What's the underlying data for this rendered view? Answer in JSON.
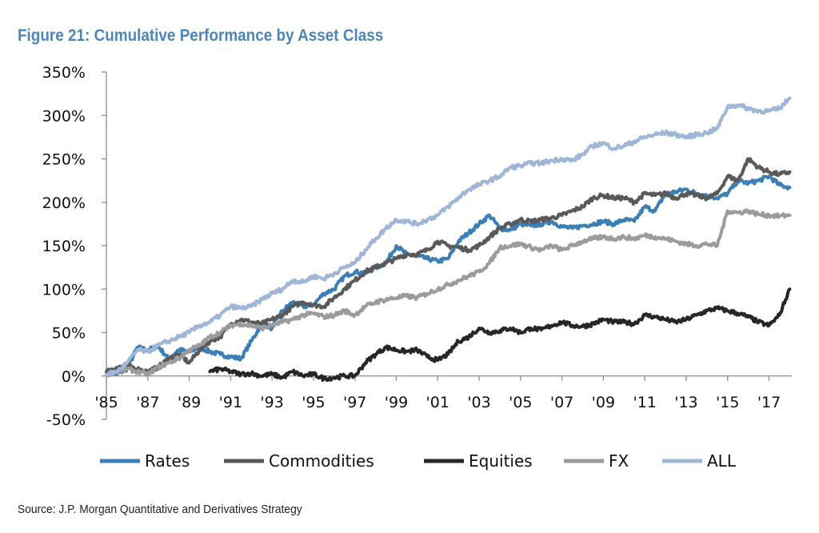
{
  "header": {
    "title": "Figure 21: Cumulative Performance by Asset Class"
  },
  "footer": {
    "source": "Source: J.P. Morgan Quantitative and Derivatives Strategy"
  },
  "chart_data": {
    "type": "line",
    "title": "Figure 21: Cumulative Performance by Asset Class",
    "xlabel": "",
    "ylabel": "",
    "xlim": [
      1985,
      2018.1
    ],
    "ylim": [
      -50,
      350
    ],
    "x_ticks": [
      1985,
      1987,
      1989,
      1991,
      1993,
      1995,
      1997,
      1999,
      2001,
      2003,
      2005,
      2007,
      2009,
      2011,
      2013,
      2015,
      2017
    ],
    "x_tick_labels": [
      "'85",
      "'87",
      "'89",
      "'91",
      "'93",
      "'95",
      "'97",
      "'99",
      "'01",
      "'03",
      "'05",
      "'07",
      "'09",
      "'11",
      "'13",
      "'15",
      "'17"
    ],
    "y_ticks": [
      -50,
      0,
      50,
      100,
      150,
      200,
      250,
      300,
      350
    ],
    "y_tick_labels": [
      "-50%",
      "0%",
      "50%",
      "100%",
      "150%",
      "200%",
      "250%",
      "300%",
      "350%"
    ],
    "grid": false,
    "legend_position": "bottom",
    "series": [
      {
        "name": "Rates",
        "color": "#3b7fb6",
        "x": [
          1985.0,
          1985.5,
          1986.0,
          1986.5,
          1987.0,
          1987.5,
          1988.0,
          1988.5,
          1989.0,
          1989.5,
          1990.0,
          1990.5,
          1991.0,
          1991.5,
          1992.0,
          1992.5,
          1993.0,
          1993.5,
          1994.0,
          1994.5,
          1995.0,
          1995.5,
          1996.0,
          1996.5,
          1997.0,
          1997.5,
          1998.0,
          1998.5,
          1999.0,
          1999.5,
          2000.0,
          2000.5,
          2001.0,
          2001.5,
          2002.0,
          2002.5,
          2003.0,
          2003.5,
          2004.0,
          2004.5,
          2005.0,
          2005.5,
          2006.0,
          2006.5,
          2007.0,
          2007.5,
          2008.0,
          2008.5,
          2009.0,
          2009.5,
          2010.0,
          2010.5,
          2011.0,
          2011.5,
          2012.0,
          2012.5,
          2013.0,
          2013.5,
          2014.0,
          2014.5,
          2015.0,
          2015.5,
          2016.0,
          2016.5,
          2017.0,
          2017.5,
          2018.0
        ],
        "values": [
          3,
          2,
          8,
          33,
          30,
          34,
          20,
          30,
          28,
          33,
          28,
          25,
          22,
          20,
          40,
          60,
          55,
          75,
          85,
          80,
          82,
          95,
          100,
          115,
          120,
          118,
          125,
          130,
          150,
          140,
          138,
          135,
          132,
          135,
          155,
          165,
          175,
          185,
          170,
          168,
          175,
          173,
          175,
          178,
          172,
          170,
          173,
          175,
          178,
          175,
          180,
          178,
          195,
          190,
          210,
          212,
          215,
          210,
          208,
          205,
          210,
          225,
          222,
          225,
          230,
          220,
          217
        ]
      },
      {
        "name": "Commodities",
        "color": "#595959",
        "x": [
          1985.0,
          1985.5,
          1986.0,
          1986.5,
          1987.0,
          1987.5,
          1988.0,
          1988.5,
          1989.0,
          1989.5,
          1990.0,
          1990.5,
          1991.0,
          1991.5,
          1992.0,
          1992.5,
          1993.0,
          1993.5,
          1994.0,
          1994.5,
          1995.0,
          1995.5,
          1996.0,
          1996.5,
          1997.0,
          1997.5,
          1998.0,
          1998.5,
          1999.0,
          1999.5,
          2000.0,
          2000.5,
          2001.0,
          2001.5,
          2002.0,
          2002.5,
          2003.0,
          2003.5,
          2004.0,
          2004.5,
          2005.0,
          2005.5,
          2006.0,
          2006.5,
          2007.0,
          2007.5,
          2008.0,
          2008.5,
          2009.0,
          2009.5,
          2010.0,
          2010.5,
          2011.0,
          2011.5,
          2012.0,
          2012.5,
          2013.0,
          2013.5,
          2014.0,
          2014.5,
          2015.0,
          2015.5,
          2016.0,
          2016.5,
          2017.0,
          2017.5,
          2018.0
        ],
        "values": [
          5,
          10,
          12,
          8,
          5,
          10,
          20,
          25,
          15,
          30,
          40,
          45,
          60,
          65,
          62,
          60,
          65,
          70,
          80,
          85,
          82,
          80,
          90,
          100,
          110,
          120,
          125,
          130,
          135,
          140,
          140,
          145,
          155,
          150,
          148,
          145,
          150,
          160,
          170,
          175,
          180,
          178,
          180,
          182,
          185,
          190,
          195,
          205,
          208,
          205,
          205,
          200,
          210,
          208,
          210,
          205,
          210,
          208,
          205,
          210,
          230,
          225,
          250,
          240,
          235,
          232,
          235
        ]
      },
      {
        "name": "Equities",
        "color": "#262626",
        "x": [
          1990.0,
          1990.5,
          1991.0,
          1991.5,
          1992.0,
          1992.5,
          1993.0,
          1993.5,
          1994.0,
          1994.5,
          1995.0,
          1995.5,
          1996.0,
          1996.5,
          1997.0,
          1997.5,
          1998.0,
          1998.5,
          1999.0,
          1999.5,
          2000.0,
          2000.5,
          2001.0,
          2001.5,
          2002.0,
          2002.5,
          2003.0,
          2003.5,
          2004.0,
          2004.5,
          2005.0,
          2005.5,
          2006.0,
          2006.5,
          2007.0,
          2007.5,
          2008.0,
          2008.5,
          2009.0,
          2009.5,
          2010.0,
          2010.5,
          2011.0,
          2011.5,
          2012.0,
          2012.5,
          2013.0,
          2013.5,
          2014.0,
          2014.5,
          2015.0,
          2015.5,
          2016.0,
          2016.5,
          2017.0,
          2017.5,
          2018.0
        ],
        "values": [
          5,
          8,
          5,
          2,
          3,
          0,
          2,
          -2,
          5,
          0,
          2,
          -3,
          -2,
          0,
          0,
          15,
          25,
          33,
          30,
          28,
          30,
          22,
          18,
          25,
          40,
          45,
          55,
          50,
          52,
          55,
          50,
          55,
          53,
          58,
          62,
          58,
          57,
          60,
          65,
          62,
          62,
          60,
          70,
          68,
          65,
          62,
          65,
          70,
          75,
          78,
          75,
          72,
          68,
          62,
          58,
          70,
          100
        ]
      },
      {
        "name": "FX",
        "color": "#9b9b9b",
        "x": [
          1985.0,
          1985.5,
          1986.0,
          1986.5,
          1987.0,
          1987.5,
          1988.0,
          1988.5,
          1989.0,
          1989.5,
          1990.0,
          1990.5,
          1991.0,
          1991.5,
          1992.0,
          1992.5,
          1993.0,
          1993.5,
          1994.0,
          1994.5,
          1995.0,
          1995.5,
          1996.0,
          1996.5,
          1997.0,
          1997.5,
          1998.0,
          1998.5,
          1999.0,
          1999.5,
          2000.0,
          2000.5,
          2001.0,
          2001.5,
          2002.0,
          2002.5,
          2003.0,
          2003.5,
          2004.0,
          2004.5,
          2005.0,
          2005.5,
          2006.0,
          2006.5,
          2007.0,
          2007.5,
          2008.0,
          2008.5,
          2009.0,
          2009.5,
          2010.0,
          2010.5,
          2011.0,
          2011.5,
          2012.0,
          2012.5,
          2013.0,
          2013.5,
          2014.0,
          2014.5,
          2015.0,
          2015.5,
          2016.0,
          2016.5,
          2017.0,
          2017.5,
          2018.0
        ],
        "values": [
          2,
          5,
          8,
          5,
          2,
          10,
          15,
          20,
          30,
          35,
          45,
          50,
          58,
          60,
          58,
          55,
          58,
          62,
          65,
          70,
          72,
          68,
          70,
          75,
          70,
          80,
          85,
          88,
          90,
          92,
          90,
          95,
          100,
          105,
          110,
          115,
          120,
          130,
          148,
          150,
          152,
          148,
          145,
          150,
          145,
          150,
          155,
          158,
          160,
          158,
          160,
          158,
          162,
          160,
          158,
          155,
          152,
          150,
          152,
          150,
          190,
          188,
          190,
          186,
          185,
          184,
          185
        ]
      },
      {
        "name": "ALL",
        "color": "#9fb6d6",
        "x": [
          1985.0,
          1985.5,
          1986.0,
          1986.5,
          1987.0,
          1987.5,
          1988.0,
          1988.5,
          1989.0,
          1989.5,
          1990.0,
          1990.5,
          1991.0,
          1991.5,
          1992.0,
          1992.5,
          1993.0,
          1993.5,
          1994.0,
          1994.5,
          1995.0,
          1995.5,
          1996.0,
          1996.5,
          1997.0,
          1997.5,
          1998.0,
          1998.5,
          1999.0,
          1999.5,
          2000.0,
          2000.5,
          2001.0,
          2001.5,
          2002.0,
          2002.5,
          2003.0,
          2003.5,
          2004.0,
          2004.5,
          2005.0,
          2005.5,
          2006.0,
          2006.5,
          2007.0,
          2007.5,
          2008.0,
          2008.5,
          2009.0,
          2009.5,
          2010.0,
          2010.5,
          2011.0,
          2011.5,
          2012.0,
          2012.5,
          2013.0,
          2013.5,
          2014.0,
          2014.5,
          2015.0,
          2015.5,
          2016.0,
          2016.5,
          2017.0,
          2017.5,
          2018.0
        ],
        "values": [
          2,
          5,
          15,
          30,
          28,
          35,
          40,
          45,
          50,
          58,
          62,
          70,
          80,
          78,
          80,
          88,
          95,
          100,
          110,
          108,
          115,
          112,
          118,
          125,
          130,
          145,
          158,
          170,
          180,
          178,
          175,
          180,
          185,
          195,
          205,
          215,
          220,
          225,
          230,
          240,
          242,
          245,
          245,
          248,
          250,
          248,
          255,
          265,
          268,
          262,
          265,
          270,
          275,
          278,
          280,
          278,
          275,
          278,
          280,
          285,
          310,
          312,
          308,
          305,
          305,
          308,
          320
        ]
      }
    ]
  }
}
